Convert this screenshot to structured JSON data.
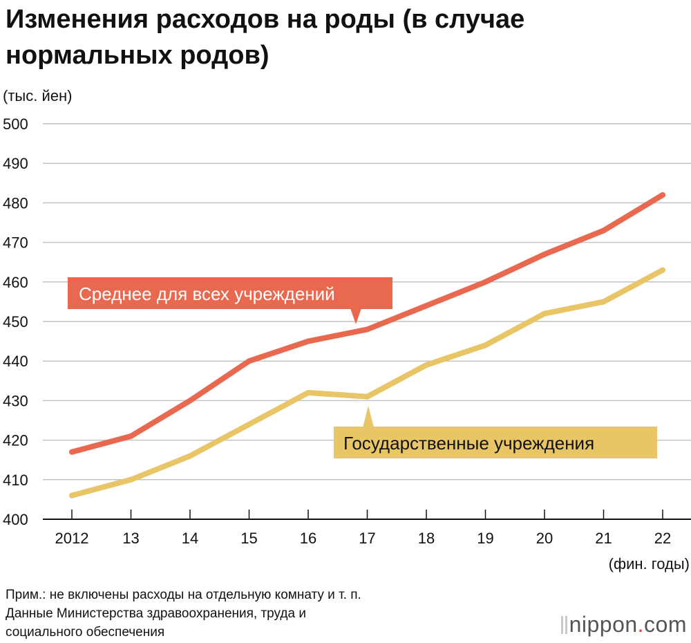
{
  "title": "Изменения расходов на роды (в случае нормальных родов)",
  "notes": {
    "line1": "Прим.: не включены расходы на отдельную комнату и т. п.",
    "line2": "Данные Министерства здравоохранения, труда и",
    "line3": "социального обеспечения"
  },
  "logo": {
    "name": "nippon",
    "dot": ".",
    "suffix": "com"
  },
  "colors": {
    "average": "#e8694f",
    "public": "#e8c566",
    "grid": "#c4c4c4",
    "axis": "#111111"
  },
  "chart_data": {
    "type": "line",
    "title": "Изменения расходов на роды (в случае нормальных родов)",
    "ylabel": "(тыс. йен)",
    "xlabel": "(фин. годы)",
    "ylim": [
      400,
      500
    ],
    "yticks": [
      400,
      410,
      420,
      430,
      440,
      450,
      460,
      470,
      480,
      490,
      500
    ],
    "categories": [
      "2012",
      "13",
      "14",
      "15",
      "16",
      "17",
      "18",
      "19",
      "20",
      "21",
      "22"
    ],
    "grid": true,
    "series": [
      {
        "name": "Среднее для всех учреждений",
        "values": [
          417,
          421,
          430,
          440,
          445,
          448,
          454,
          460,
          467,
          473,
          482
        ]
      },
      {
        "name": "Государственные учреждения",
        "values": [
          406,
          410,
          416,
          424,
          432,
          431,
          439,
          444,
          452,
          455,
          463
        ]
      }
    ]
  }
}
